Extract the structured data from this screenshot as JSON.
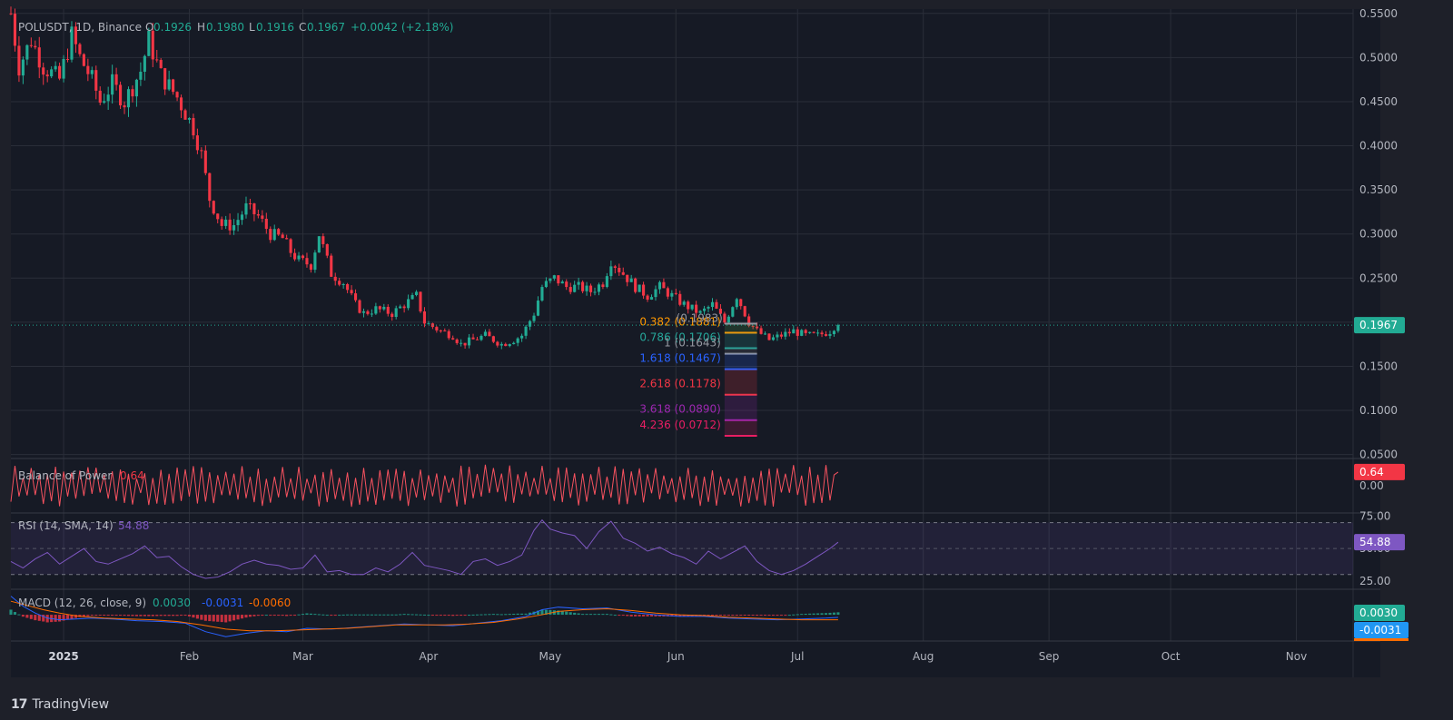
{
  "chart_data": [
    {
      "type": "candlestick",
      "symbol_header": "POLUSDT, 1D, Binance",
      "ohlc": {
        "open_label": "O",
        "open": "0.1926",
        "high_label": "H",
        "high": "0.1980",
        "low_label": "L",
        "low": "0.1916",
        "close_label": "C",
        "close": "0.1967",
        "change": "+0.0042 (+2.18%)"
      },
      "last_price_label": "0.1967",
      "last_price": 0.1967,
      "y_ticks": [
        "0.5500",
        "0.5000",
        "0.4500",
        "0.4000",
        "0.3500",
        "0.3000",
        "0.2500",
        "0.2000",
        "0.1500",
        "0.1000",
        "0.0500"
      ],
      "y_tick_values": [
        0.55,
        0.5,
        0.45,
        0.4,
        0.35,
        0.3,
        0.25,
        0.2,
        0.15,
        0.1,
        0.05
      ],
      "ylim": [
        0.0455,
        0.557
      ],
      "x_tick_labels": [
        "2025",
        "Feb",
        "Mar",
        "Apr",
        "May",
        "Jun",
        "Jul",
        "Aug",
        "Sep",
        "Oct",
        "Nov"
      ],
      "x_tick_days": [
        0,
        31,
        59,
        90,
        120,
        151,
        181,
        212,
        243,
        273,
        304
      ],
      "x_axis_unit": "days from 2025-01-01",
      "x_range_days": [
        -13,
        318
      ],
      "price_path": [
        [
          -13,
          0.55
        ],
        [
          -11,
          0.49
        ],
        [
          -8,
          0.52
        ],
        [
          -5,
          0.49
        ],
        [
          -1,
          0.475
        ],
        [
          2,
          0.525
        ],
        [
          4,
          0.5
        ],
        [
          7,
          0.475
        ],
        [
          9,
          0.45
        ],
        [
          12,
          0.47
        ],
        [
          15,
          0.45
        ],
        [
          19,
          0.485
        ],
        [
          21,
          0.52
        ],
        [
          24,
          0.48
        ],
        [
          28,
          0.455
        ],
        [
          32,
          0.42
        ],
        [
          34,
          0.39
        ],
        [
          36,
          0.34
        ],
        [
          39,
          0.31
        ],
        [
          42,
          0.31
        ],
        [
          45,
          0.33
        ],
        [
          48,
          0.32
        ],
        [
          51,
          0.3
        ],
        [
          54,
          0.295
        ],
        [
          56,
          0.28
        ],
        [
          58,
          0.27
        ],
        [
          61,
          0.265
        ],
        [
          63,
          0.3
        ],
        [
          66,
          0.255
        ],
        [
          69,
          0.245
        ],
        [
          72,
          0.22
        ],
        [
          74,
          0.21
        ],
        [
          77,
          0.215
        ],
        [
          81,
          0.21
        ],
        [
          84,
          0.22
        ],
        [
          87,
          0.23
        ],
        [
          89,
          0.2
        ],
        [
          93,
          0.19
        ],
        [
          96,
          0.185
        ],
        [
          98,
          0.175
        ],
        [
          101,
          0.18
        ],
        [
          104,
          0.185
        ],
        [
          108,
          0.175
        ],
        [
          111,
          0.18
        ],
        [
          113,
          0.185
        ],
        [
          116,
          0.21
        ],
        [
          118,
          0.24
        ],
        [
          121,
          0.25
        ],
        [
          124,
          0.24
        ],
        [
          127,
          0.24
        ],
        [
          130,
          0.235
        ],
        [
          133,
          0.245
        ],
        [
          135,
          0.27
        ],
        [
          138,
          0.255
        ],
        [
          141,
          0.24
        ],
        [
          144,
          0.23
        ],
        [
          147,
          0.24
        ],
        [
          150,
          0.23
        ],
        [
          153,
          0.22
        ],
        [
          157,
          0.21
        ],
        [
          160,
          0.22
        ],
        [
          163,
          0.2
        ],
        [
          166,
          0.23
        ],
        [
          169,
          0.2
        ],
        [
          171,
          0.19
        ],
        [
          174,
          0.18
        ],
        [
          177,
          0.185
        ],
        [
          180,
          0.19
        ],
        [
          183,
          0.185
        ],
        [
          186,
          0.185
        ],
        [
          189,
          0.19
        ],
        [
          190,
          0.195
        ]
      ],
      "fib_levels": [
        {
          "label": "0.382 (0.1881)",
          "value": 0.1881,
          "color": "#ff9800"
        },
        {
          "label": "0.786 (0.1706)",
          "value": 0.1706,
          "color": "#26a69a"
        },
        {
          "label": "1 (0.1643)",
          "value": 0.1643,
          "color": "#9598a1"
        },
        {
          "label": "1.618 (0.1467)",
          "value": 0.1467,
          "color": "#2962ff"
        },
        {
          "label": "2.618 (0.1178)",
          "value": 0.1178,
          "color": "#f23645"
        },
        {
          "label": "3.618 (0.0890)",
          "value": 0.089,
          "color": "#9c27b0"
        },
        {
          "label": "4.236 (0.0712)",
          "value": 0.0712,
          "color": "#e91e63"
        }
      ],
      "fib_top_label": "(0.1983)",
      "fib_top_value": 0.1983,
      "fib_x_days": [
        163,
        171
      ]
    },
    {
      "type": "line",
      "title": "Balance of Power",
      "value_label": "0.64",
      "value": 0.64,
      "y_ticks": [
        "0.00"
      ],
      "ylim": [
        -1.2,
        1.15
      ],
      "color": "#f7525f"
    },
    {
      "type": "line",
      "title": "RSI (14, SMA, 14)",
      "value_label": "54.88",
      "value": 54.88,
      "y_ticks": [
        "75.00",
        "50.00",
        "25.00"
      ],
      "band": [
        30,
        70
      ],
      "ylim": [
        20,
        76
      ],
      "color": "#7e57c2",
      "path": [
        [
          -13,
          40
        ],
        [
          -10,
          35
        ],
        [
          -7,
          42
        ],
        [
          -4,
          47
        ],
        [
          -1,
          38
        ],
        [
          2,
          44
        ],
        [
          5,
          50
        ],
        [
          8,
          40
        ],
        [
          11,
          38
        ],
        [
          14,
          42
        ],
        [
          17,
          46
        ],
        [
          20,
          52
        ],
        [
          23,
          43
        ],
        [
          26,
          44
        ],
        [
          29,
          36
        ],
        [
          32,
          30
        ],
        [
          35,
          27
        ],
        [
          38,
          28
        ],
        [
          41,
          32
        ],
        [
          44,
          38
        ],
        [
          47,
          41
        ],
        [
          50,
          38
        ],
        [
          53,
          37
        ],
        [
          56,
          34
        ],
        [
          59,
          35
        ],
        [
          62,
          45
        ],
        [
          65,
          32
        ],
        [
          68,
          33
        ],
        [
          71,
          30
        ],
        [
          74,
          30
        ],
        [
          77,
          35
        ],
        [
          80,
          32
        ],
        [
          83,
          38
        ],
        [
          86,
          47
        ],
        [
          89,
          37
        ],
        [
          92,
          35
        ],
        [
          95,
          33
        ],
        [
          98,
          30
        ],
        [
          101,
          40
        ],
        [
          104,
          42
        ],
        [
          107,
          37
        ],
        [
          110,
          40
        ],
        [
          113,
          45
        ],
        [
          116,
          64
        ],
        [
          118,
          72
        ],
        [
          120,
          65
        ],
        [
          123,
          62
        ],
        [
          126,
          60
        ],
        [
          129,
          50
        ],
        [
          132,
          63
        ],
        [
          135,
          71
        ],
        [
          138,
          58
        ],
        [
          141,
          54
        ],
        [
          144,
          48
        ],
        [
          147,
          51
        ],
        [
          150,
          46
        ],
        [
          153,
          43
        ],
        [
          156,
          38
        ],
        [
          159,
          48
        ],
        [
          162,
          42
        ],
        [
          165,
          47
        ],
        [
          168,
          52
        ],
        [
          171,
          40
        ],
        [
          174,
          33
        ],
        [
          177,
          30
        ],
        [
          180,
          33
        ],
        [
          183,
          38
        ],
        [
          186,
          44
        ],
        [
          189,
          50
        ],
        [
          191,
          54.88
        ]
      ]
    },
    {
      "type": "line",
      "title": "MACD (12, 26, close, 9)",
      "histogram_label": "0.0030",
      "macd_label": "-0.0031",
      "signal_label": "-0.0060",
      "ylim": [
        -0.03,
        0.028
      ],
      "macd_color": "#2962ff",
      "signal_color": "#ff6d00",
      "macd_path": [
        [
          -13,
          0.022
        ],
        [
          -10,
          0.01
        ],
        [
          -7,
          0.002
        ],
        [
          -4,
          -0.004
        ],
        [
          -1,
          -0.006
        ],
        [
          3,
          -0.005
        ],
        [
          7,
          -0.004
        ],
        [
          12,
          -0.005
        ],
        [
          18,
          -0.007
        ],
        [
          24,
          -0.008
        ],
        [
          30,
          -0.01
        ],
        [
          35,
          -0.02
        ],
        [
          40,
          -0.026
        ],
        [
          45,
          -0.022
        ],
        [
          50,
          -0.019
        ],
        [
          55,
          -0.02
        ],
        [
          60,
          -0.016
        ],
        [
          66,
          -0.017
        ],
        [
          72,
          -0.015
        ],
        [
          78,
          -0.013
        ],
        [
          84,
          -0.011
        ],
        [
          90,
          -0.012
        ],
        [
          96,
          -0.013
        ],
        [
          102,
          -0.01
        ],
        [
          108,
          -0.007
        ],
        [
          114,
          -0.002
        ],
        [
          118,
          0.006
        ],
        [
          122,
          0.009
        ],
        [
          128,
          0.007
        ],
        [
          134,
          0.008
        ],
        [
          140,
          0.003
        ],
        [
          146,
          0.0
        ],
        [
          152,
          -0.002
        ],
        [
          158,
          -0.002
        ],
        [
          164,
          -0.004
        ],
        [
          170,
          -0.005
        ],
        [
          176,
          -0.006
        ],
        [
          182,
          -0.005
        ],
        [
          188,
          -0.004
        ],
        [
          191,
          -0.0031
        ]
      ],
      "signal_path": [
        [
          -13,
          0.016
        ],
        [
          -9,
          0.011
        ],
        [
          -5,
          0.006
        ],
        [
          -1,
          0.002
        ],
        [
          4,
          -0.002
        ],
        [
          10,
          -0.004
        ],
        [
          16,
          -0.005
        ],
        [
          22,
          -0.006
        ],
        [
          28,
          -0.008
        ],
        [
          34,
          -0.012
        ],
        [
          40,
          -0.017
        ],
        [
          46,
          -0.019
        ],
        [
          52,
          -0.019
        ],
        [
          58,
          -0.018
        ],
        [
          64,
          -0.017
        ],
        [
          70,
          -0.016
        ],
        [
          76,
          -0.014
        ],
        [
          82,
          -0.012
        ],
        [
          88,
          -0.012
        ],
        [
          94,
          -0.012
        ],
        [
          100,
          -0.011
        ],
        [
          106,
          -0.009
        ],
        [
          112,
          -0.005
        ],
        [
          118,
          0.0
        ],
        [
          122,
          0.004
        ],
        [
          128,
          0.006
        ],
        [
          134,
          0.007
        ],
        [
          140,
          0.005
        ],
        [
          146,
          0.002
        ],
        [
          152,
          0.0
        ],
        [
          158,
          -0.001
        ],
        [
          164,
          -0.003
        ],
        [
          170,
          -0.004
        ],
        [
          176,
          -0.005
        ],
        [
          182,
          -0.006
        ],
        [
          188,
          -0.006
        ],
        [
          191,
          -0.006
        ]
      ]
    }
  ],
  "footer": {
    "brand_name": "TradingView",
    "brand_mark": "17"
  },
  "colors": {
    "background": "#1e2029",
    "grid": "#2a2e39",
    "up": "#22ab94",
    "down": "#f23645",
    "text": "#b2b5be",
    "last_price": "#22ab94",
    "bop_badge": "#f23645",
    "rsi_badge": "#7e57c2",
    "macd_hist_badge": "#22ab94",
    "macd_badge": "#2196f3"
  }
}
